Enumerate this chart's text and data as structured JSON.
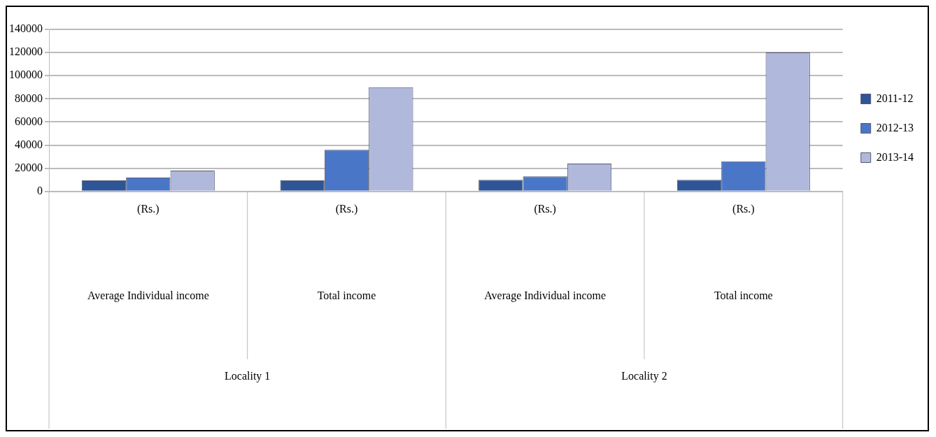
{
  "chart_data": {
    "type": "bar",
    "categories": [
      "(Rs.)",
      "(Rs.)",
      "(Rs.)",
      "(Rs.)"
    ],
    "series": [
      {
        "name": "2011-12",
        "color": "#2e5597",
        "values": [
          9500,
          9500,
          10000,
          10000
        ]
      },
      {
        "name": "2012-13",
        "color": "#4a76c8",
        "values": [
          12000,
          36000,
          13000,
          26000
        ]
      },
      {
        "name": "2013-14",
        "color": "#b0b8dc",
        "values": [
          18000,
          90000,
          24000,
          120000
        ]
      }
    ],
    "ylim": [
      0,
      140000
    ],
    "yticks": [
      0,
      20000,
      40000,
      60000,
      80000,
      100000,
      120000,
      140000
    ],
    "grid": "y",
    "legend": "right",
    "annotations": [
      "Average Individual income",
      "Total income",
      "Average Individual income",
      "Total income",
      "Locality 1",
      "Locality 2"
    ]
  }
}
